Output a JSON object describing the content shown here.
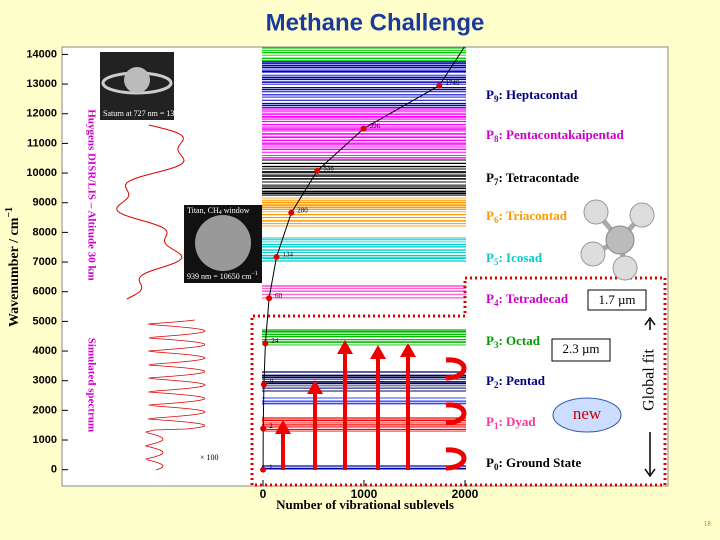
{
  "title": "Methane Challenge",
  "chart_data": {
    "type": "line",
    "xlabel": "Number of vibrational sublevels",
    "ylabel": {
      "text": "Wavenumber / cm",
      "sup": "−1"
    },
    "x": [
      1,
      2,
      9,
      24,
      60,
      134,
      280,
      538,
      996,
      1746
    ],
    "values": [
      0,
      1390,
      2870,
      4260,
      5780,
      7170,
      8660,
      10080,
      11500,
      12950
    ],
    "color": "#dd0000",
    "line_color": "#000000",
    "xlim": [
      -1990,
      4010
    ],
    "ylim": [
      -550,
      14250
    ],
    "xticks": [
      0,
      1000,
      2000
    ],
    "yticks": [
      0,
      1000,
      2000,
      3000,
      4000,
      5000,
      6000,
      7000,
      8000,
      9000,
      10000,
      11000,
      12000,
      13000,
      14000
    ],
    "polyads": [
      {
        "symbol": "P",
        "sub": "9",
        "text": ": Heptacontad",
        "color": "#000080"
      },
      {
        "symbol": "P",
        "sub": "8",
        "text": ": Pentacontakaipentad",
        "color": "#cc00cc"
      },
      {
        "symbol": "P",
        "sub": "7",
        "text": ": Tetracontade",
        "color": "#000000"
      },
      {
        "symbol": "P",
        "sub": "6",
        "text": ": Triacontad",
        "color": "#ff9900"
      },
      {
        "symbol": "P",
        "sub": "5",
        "text": ": Icosad",
        "color": "#00cccc"
      },
      {
        "symbol": "P",
        "sub": "4",
        "text": ": Tetradecad",
        "color": "#cc00cc"
      },
      {
        "symbol": "P",
        "sub": "3",
        "text": ": Octad",
        "color": "#009900"
      },
      {
        "symbol": "P",
        "sub": "2",
        "text": ": Pentad",
        "color": "#000080"
      },
      {
        "symbol": "P",
        "sub": "1",
        "text": ": Dyad",
        "color": "#ff3399"
      },
      {
        "symbol": "P",
        "sub": "0",
        "text": ": Ground State",
        "color": "#000000"
      }
    ]
  },
  "images": {
    "saturn": {
      "text": "Saturn at 727 nm = 13755 cm",
      "sup": "−1"
    },
    "titan": {
      "line1": "Titan, CH",
      "sub": "4",
      "rest": " window",
      "line2": "939 nm = 10650 cm",
      "sup": "−1"
    }
  },
  "spectra": {
    "observed": "Huygens DISR/LIS – Altitude 30 km",
    "simulated": "Simulated spectrum",
    "scale": "× 100"
  },
  "callouts": {
    "band1": "1.7 µm",
    "band2": "2.3 µm",
    "new": "new",
    "global": "Global fit"
  },
  "page_number": "18"
}
